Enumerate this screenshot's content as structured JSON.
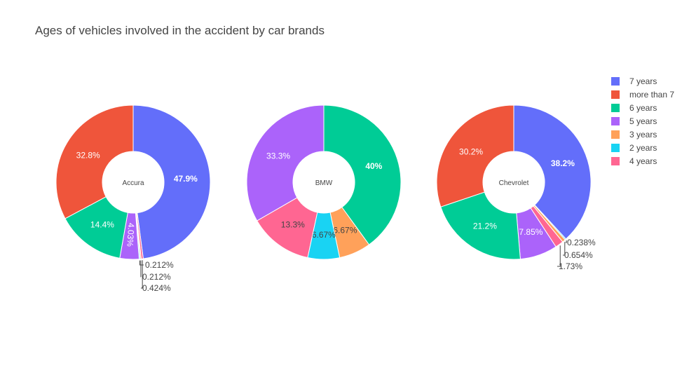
{
  "chart_data": {
    "type": "pie",
    "title": "Ages of vehicles involved in the accident by car brands",
    "legend_position": "top-right",
    "categories": [
      "7 years",
      "more than 7",
      "6 years",
      "5 years",
      "3 years",
      "2 years",
      "4 years"
    ],
    "colors": {
      "7 years": "#636efa",
      "more than 7": "#ef553b",
      "6 years": "#00cc96",
      "5 years": "#ab63fa",
      "3 years": "#ffa15a",
      "2 years": "#19d3f3",
      "4 years": "#ff6692"
    },
    "charts": [
      {
        "center_label": "Accura",
        "slices": [
          {
            "category": "7 years",
            "value": 47.9,
            "label": "47.9%"
          },
          {
            "category": "4 years",
            "value": 0.424,
            "label": "0.424%"
          },
          {
            "category": "3 years",
            "value": 0.212,
            "label": "0.212%"
          },
          {
            "category": "2 years",
            "value": 0.212,
            "label": "0.212%"
          },
          {
            "category": "5 years",
            "value": 4.03,
            "label": "4.03%"
          },
          {
            "category": "6 years",
            "value": 14.4,
            "label": "14.4%"
          },
          {
            "category": "more than 7",
            "value": 32.8,
            "label": "32.8%"
          }
        ]
      },
      {
        "center_label": "BMW",
        "slices": [
          {
            "category": "6 years",
            "value": 40,
            "label": "40%"
          },
          {
            "category": "3 years",
            "value": 6.67,
            "label": "6.67%"
          },
          {
            "category": "2 years",
            "value": 6.67,
            "label": "6.67%"
          },
          {
            "category": "4 years",
            "value": 13.3,
            "label": "13.3%"
          },
          {
            "category": "5 years",
            "value": 33.3,
            "label": "33.3%"
          }
        ]
      },
      {
        "center_label": "Chevrolet",
        "slices": [
          {
            "category": "7 years",
            "value": 38.2,
            "label": "38.2%"
          },
          {
            "category": "2 years",
            "value": 0.238,
            "label": "0.238%"
          },
          {
            "category": "3 years",
            "value": 0.654,
            "label": "0.654%"
          },
          {
            "category": "4 years",
            "value": 1.73,
            "label": "1.73%"
          },
          {
            "category": "5 years",
            "value": 7.85,
            "label": "7.85%"
          },
          {
            "category": "6 years",
            "value": 21.2,
            "label": "21.2%"
          },
          {
            "category": "more than 7",
            "value": 30.2,
            "label": "30.2%"
          }
        ]
      }
    ]
  }
}
